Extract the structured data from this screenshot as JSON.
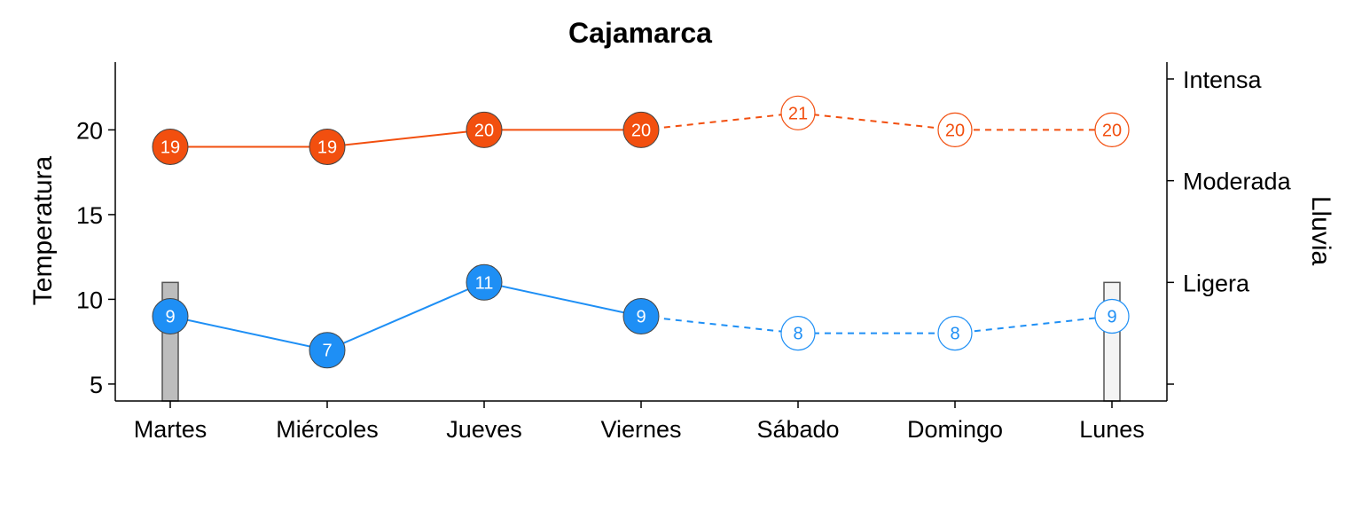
{
  "chart_data": {
    "type": "line",
    "title": "Cajamarca",
    "ylabel": "Temperatura",
    "y2label": "Lluvia",
    "categories": [
      "Martes",
      "Miércoles",
      "Jueves",
      "Viernes",
      "Sábado",
      "Domingo",
      "Lunes"
    ],
    "ylim": [
      4,
      24
    ],
    "yticks": [
      5,
      10,
      15,
      20
    ],
    "y2ticks": [
      "Intensa",
      "Moderada",
      "Ligera"
    ],
    "y2levels": [
      0,
      1,
      2,
      3
    ],
    "observed_count": 4,
    "series": [
      {
        "name": "",
        "color": "#f24f0f",
        "values": [
          19,
          19,
          20,
          20,
          21,
          20,
          20
        ]
      },
      {
        "name": "",
        "color": "#1e8ff5",
        "values": [
          9,
          7,
          11,
          9,
          8,
          8,
          9
        ]
      }
    ],
    "rain_bars": [
      {
        "category": "Martes",
        "level": 1,
        "color": "#bdbdbd"
      },
      {
        "category": "Lunes",
        "level": 1,
        "color": "#f4f4f4"
      }
    ],
    "grid": false
  }
}
